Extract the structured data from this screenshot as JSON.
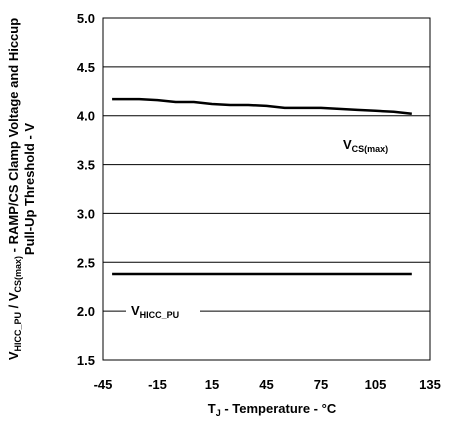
{
  "chart_data": {
    "type": "line",
    "xlabel": {
      "main": "T",
      "sub": "J",
      "rest": " - Temperature - °C"
    },
    "ylabel": {
      "line1_parts": [
        {
          "t": "V",
          "sub": false
        },
        {
          "t": "HICC_PU",
          "sub": true
        },
        {
          "t": " / V",
          "sub": false
        },
        {
          "t": "CS(max)",
          "sub": true
        },
        {
          "t": " - RAMP/CS Clamp Voltage and Hiccup",
          "sub": false
        }
      ],
      "line2": "Pull-Up Threshold - V"
    },
    "xlim": [
      -45,
      135
    ],
    "ylim": [
      1.5,
      5.0
    ],
    "xticks": [
      "-45",
      "-15",
      "15",
      "45",
      "75",
      "105",
      "135"
    ],
    "xtick_values": [
      -45,
      -15,
      15,
      45,
      75,
      105,
      135
    ],
    "yticks": [
      "1.5",
      "2.0",
      "2.5",
      "3.0",
      "3.5",
      "4.0",
      "4.5",
      "5.0"
    ],
    "ytick_values": [
      1.5,
      2.0,
      2.5,
      3.0,
      3.5,
      4.0,
      4.5,
      5.0
    ],
    "grid": "horizontal",
    "series": [
      {
        "label_main": "V",
        "label_sub": "CS(max)",
        "x": [
          -40,
          -25,
          -15,
          -5,
          5,
          15,
          25,
          35,
          45,
          55,
          65,
          75,
          85,
          95,
          105,
          115,
          125
        ],
        "y": [
          4.17,
          4.17,
          4.16,
          4.14,
          4.14,
          4.12,
          4.11,
          4.11,
          4.1,
          4.08,
          4.08,
          4.08,
          4.07,
          4.06,
          4.05,
          4.04,
          4.02
        ]
      },
      {
        "label_main": "V",
        "label_sub": "HICC_PU",
        "x": [
          -40,
          125
        ],
        "y": [
          2.38,
          2.38
        ]
      }
    ]
  }
}
